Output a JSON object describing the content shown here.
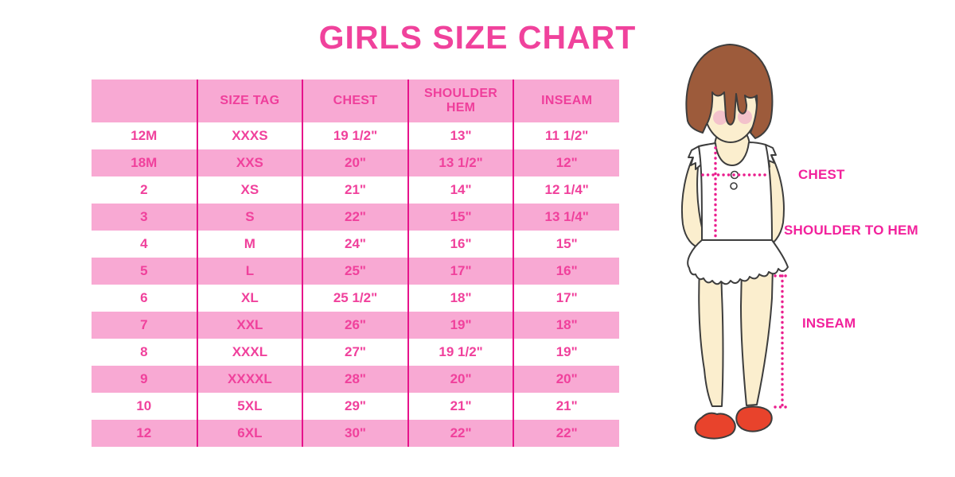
{
  "page_title": "GIRLS SIZE CHART",
  "colors": {
    "title_pink": "#F0429C",
    "row_pink": "#F8A9D3",
    "divider_magenta": "#E6138B",
    "table_text_pink": "#F0419C",
    "label_magenta": "#F2219C",
    "dotted_line_pink": "#EA1E8E",
    "hair_brown": "#9D5B3B",
    "skin": "#FBEECE",
    "blush": "#F3C2CB",
    "shoe_red": "#E8432C"
  },
  "chart_data": {
    "type": "table",
    "title": "GIRLS SIZE CHART",
    "columns": [
      "",
      "SIZE TAG",
      "CHEST",
      "SHOULDER HEM",
      "INSEAM"
    ],
    "rows": [
      [
        "12M",
        "XXXS",
        "19 1/2\"",
        "13\"",
        "11 1/2\""
      ],
      [
        "18M",
        "XXS",
        "20\"",
        "13 1/2\"",
        "12\""
      ],
      [
        "2",
        "XS",
        "21\"",
        "14\"",
        "12 1/4\""
      ],
      [
        "3",
        "S",
        "22\"",
        "15\"",
        "13 1/4\""
      ],
      [
        "4",
        "M",
        "24\"",
        "16\"",
        "15\""
      ],
      [
        "5",
        "L",
        "25\"",
        "17\"",
        "16\""
      ],
      [
        "6",
        "XL",
        "25 1/2\"",
        "18\"",
        "17\""
      ],
      [
        "7",
        "XXL",
        "26\"",
        "19\"",
        "18\""
      ],
      [
        "8",
        "XXXL",
        "27\"",
        "19 1/2\"",
        "19\""
      ],
      [
        "9",
        "XXXXL",
        "28\"",
        "20\"",
        "20\""
      ],
      [
        "10",
        "5XL",
        "29\"",
        "21\"",
        "21\""
      ],
      [
        "12",
        "6XL",
        "30\"",
        "22\"",
        "22\""
      ]
    ],
    "layout_hints": {
      "row_striping": [
        "white",
        "pink"
      ],
      "header_background": "pink",
      "column_dividers": "magenta vertical lines only"
    }
  },
  "figure": {
    "description": "illustration of girl with measurement guides",
    "labels": {
      "chest": "CHEST",
      "shoulder_to_hem": "SHOULDER TO HEM",
      "inseam": "INSEAM"
    }
  }
}
